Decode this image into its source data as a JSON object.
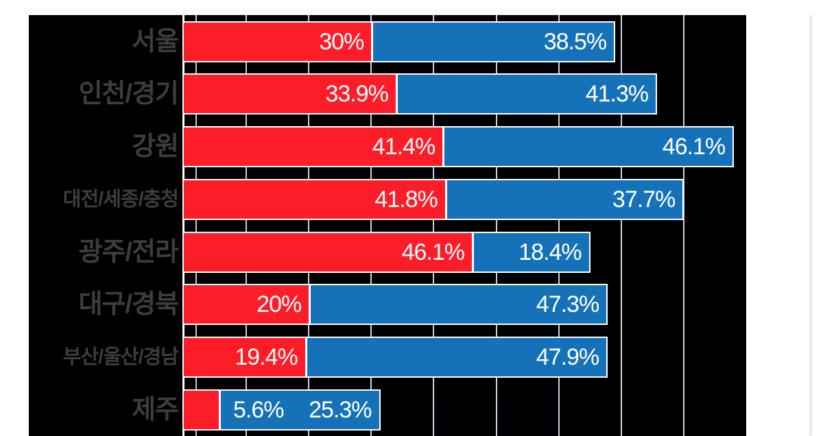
{
  "page": {
    "background": "#ffffff"
  },
  "chart": {
    "plot_bg": "#000000",
    "bar_border_color": "#ffffff",
    "grid_color": "#ccd3e0",
    "minor_grid_color": "#c5cbda",
    "spine_color": "#ffffff",
    "category_label_color": "#3d3d3d",
    "value_label_color": "#ffffff",
    "scrollbar_color": "#e9e9e9"
  },
  "chart_data": {
    "type": "bar",
    "orientation": "horizontal",
    "stacked": true,
    "title": "",
    "xlabel": "",
    "ylabel": "",
    "legend": "none",
    "grid": "on",
    "xlim": [
      0,
      90
    ],
    "grid_step_percent": 10,
    "minor_line_percent": 2,
    "categories": [
      "서울",
      "인천/경기",
      "강원",
      "대전/세종/충청",
      "광주/전라",
      "대구/경북",
      "부산/울산/경남",
      "제주"
    ],
    "series": [
      {
        "name": "red",
        "color": "#fd1d28",
        "values": [
          30,
          33.9,
          41.4,
          41.8,
          46.1,
          20,
          19.4,
          5.6
        ],
        "labels": [
          "30%",
          "33.9%",
          "41.4%",
          "41.8%",
          "46.1%",
          "20%",
          "19.4%",
          "5.6%"
        ]
      },
      {
        "name": "blue",
        "color": "#1572b9",
        "values": [
          38.5,
          41.3,
          46.1,
          37.7,
          18.4,
          47.3,
          47.9,
          25.3
        ],
        "labels": [
          "38.5%",
          "41.3%",
          "46.1%",
          "37.7%",
          "18.4%",
          "47.3%",
          "47.9%",
          "25.3%"
        ]
      }
    ]
  }
}
